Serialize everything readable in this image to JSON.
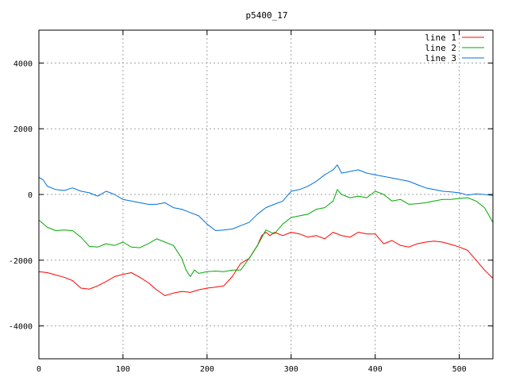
{
  "chart_data": {
    "type": "line",
    "title": "p5400_17",
    "xlabel": "",
    "ylabel": "",
    "xlim": [
      0,
      540
    ],
    "ylim": [
      -5000,
      5000
    ],
    "xticks": [
      0,
      100,
      200,
      300,
      400,
      500
    ],
    "yticks": [
      -4000,
      -2000,
      0,
      2000,
      4000
    ],
    "grid": true,
    "legend": "top-right",
    "series": [
      {
        "name": "line 1",
        "color": "#ff0000",
        "points": [
          [
            0,
            -2350
          ],
          [
            10,
            -2380
          ],
          [
            20,
            -2450
          ],
          [
            30,
            -2520
          ],
          [
            40,
            -2620
          ],
          [
            50,
            -2850
          ],
          [
            60,
            -2880
          ],
          [
            70,
            -2780
          ],
          [
            80,
            -2650
          ],
          [
            90,
            -2500
          ],
          [
            100,
            -2430
          ],
          [
            110,
            -2380
          ],
          [
            120,
            -2520
          ],
          [
            130,
            -2680
          ],
          [
            140,
            -2900
          ],
          [
            150,
            -3080
          ],
          [
            160,
            -3000
          ],
          [
            170,
            -2950
          ],
          [
            180,
            -2980
          ],
          [
            190,
            -2900
          ],
          [
            200,
            -2850
          ],
          [
            210,
            -2820
          ],
          [
            220,
            -2780
          ],
          [
            230,
            -2500
          ],
          [
            240,
            -2100
          ],
          [
            250,
            -1950
          ],
          [
            260,
            -1550
          ],
          [
            265,
            -1250
          ],
          [
            270,
            -1150
          ],
          [
            275,
            -1250
          ],
          [
            280,
            -1150
          ],
          [
            290,
            -1250
          ],
          [
            300,
            -1150
          ],
          [
            310,
            -1200
          ],
          [
            320,
            -1300
          ],
          [
            330,
            -1250
          ],
          [
            340,
            -1350
          ],
          [
            350,
            -1150
          ],
          [
            360,
            -1250
          ],
          [
            370,
            -1300
          ],
          [
            380,
            -1150
          ],
          [
            390,
            -1200
          ],
          [
            400,
            -1200
          ],
          [
            410,
            -1500
          ],
          [
            420,
            -1400
          ],
          [
            430,
            -1550
          ],
          [
            440,
            -1600
          ],
          [
            450,
            -1500
          ],
          [
            460,
            -1450
          ],
          [
            470,
            -1420
          ],
          [
            480,
            -1450
          ],
          [
            490,
            -1520
          ],
          [
            500,
            -1600
          ],
          [
            510,
            -1700
          ],
          [
            520,
            -2000
          ],
          [
            530,
            -2300
          ],
          [
            540,
            -2550
          ]
        ]
      },
      {
        "name": "line 2",
        "color": "#00aa00",
        "points": [
          [
            0,
            -780
          ],
          [
            10,
            -1000
          ],
          [
            20,
            -1100
          ],
          [
            30,
            -1080
          ],
          [
            40,
            -1100
          ],
          [
            50,
            -1300
          ],
          [
            60,
            -1580
          ],
          [
            70,
            -1600
          ],
          [
            80,
            -1500
          ],
          [
            90,
            -1550
          ],
          [
            100,
            -1450
          ],
          [
            110,
            -1600
          ],
          [
            120,
            -1620
          ],
          [
            130,
            -1500
          ],
          [
            140,
            -1350
          ],
          [
            150,
            -1450
          ],
          [
            160,
            -1550
          ],
          [
            170,
            -1950
          ],
          [
            175,
            -2300
          ],
          [
            180,
            -2500
          ],
          [
            185,
            -2300
          ],
          [
            190,
            -2400
          ],
          [
            200,
            -2350
          ],
          [
            210,
            -2330
          ],
          [
            220,
            -2350
          ],
          [
            230,
            -2300
          ],
          [
            240,
            -2300
          ],
          [
            250,
            -1950
          ],
          [
            260,
            -1550
          ],
          [
            270,
            -1080
          ],
          [
            280,
            -1200
          ],
          [
            290,
            -900
          ],
          [
            300,
            -700
          ],
          [
            310,
            -650
          ],
          [
            320,
            -600
          ],
          [
            330,
            -450
          ],
          [
            340,
            -400
          ],
          [
            350,
            -200
          ],
          [
            355,
            150
          ],
          [
            360,
            0
          ],
          [
            370,
            -100
          ],
          [
            380,
            -50
          ],
          [
            390,
            -100
          ],
          [
            400,
            100
          ],
          [
            410,
            0
          ],
          [
            420,
            -200
          ],
          [
            430,
            -150
          ],
          [
            440,
            -300
          ],
          [
            450,
            -280
          ],
          [
            460,
            -250
          ],
          [
            470,
            -200
          ],
          [
            480,
            -150
          ],
          [
            490,
            -150
          ],
          [
            500,
            -120
          ],
          [
            510,
            -100
          ],
          [
            520,
            -200
          ],
          [
            530,
            -400
          ],
          [
            540,
            -850
          ]
        ]
      },
      {
        "name": "line 3",
        "color": "#0070dd",
        "points": [
          [
            0,
            520
          ],
          [
            5,
            450
          ],
          [
            10,
            250
          ],
          [
            20,
            150
          ],
          [
            30,
            120
          ],
          [
            40,
            200
          ],
          [
            50,
            100
          ],
          [
            60,
            50
          ],
          [
            70,
            -50
          ],
          [
            80,
            100
          ],
          [
            90,
            0
          ],
          [
            100,
            -150
          ],
          [
            110,
            -200
          ],
          [
            120,
            -250
          ],
          [
            130,
            -300
          ],
          [
            140,
            -300
          ],
          [
            150,
            -250
          ],
          [
            160,
            -400
          ],
          [
            170,
            -450
          ],
          [
            180,
            -550
          ],
          [
            190,
            -650
          ],
          [
            200,
            -900
          ],
          [
            210,
            -1100
          ],
          [
            220,
            -1080
          ],
          [
            230,
            -1050
          ],
          [
            240,
            -950
          ],
          [
            250,
            -850
          ],
          [
            260,
            -600
          ],
          [
            270,
            -400
          ],
          [
            280,
            -300
          ],
          [
            290,
            -200
          ],
          [
            300,
            100
          ],
          [
            310,
            150
          ],
          [
            320,
            250
          ],
          [
            330,
            400
          ],
          [
            340,
            600
          ],
          [
            350,
            750
          ],
          [
            355,
            900
          ],
          [
            360,
            650
          ],
          [
            370,
            700
          ],
          [
            380,
            750
          ],
          [
            390,
            650
          ],
          [
            400,
            600
          ],
          [
            410,
            550
          ],
          [
            420,
            500
          ],
          [
            430,
            450
          ],
          [
            440,
            400
          ],
          [
            450,
            300
          ],
          [
            460,
            200
          ],
          [
            470,
            150
          ],
          [
            480,
            100
          ],
          [
            490,
            80
          ],
          [
            500,
            50
          ],
          [
            510,
            -20
          ],
          [
            520,
            20
          ],
          [
            530,
            0
          ],
          [
            540,
            -30
          ]
        ]
      }
    ]
  }
}
